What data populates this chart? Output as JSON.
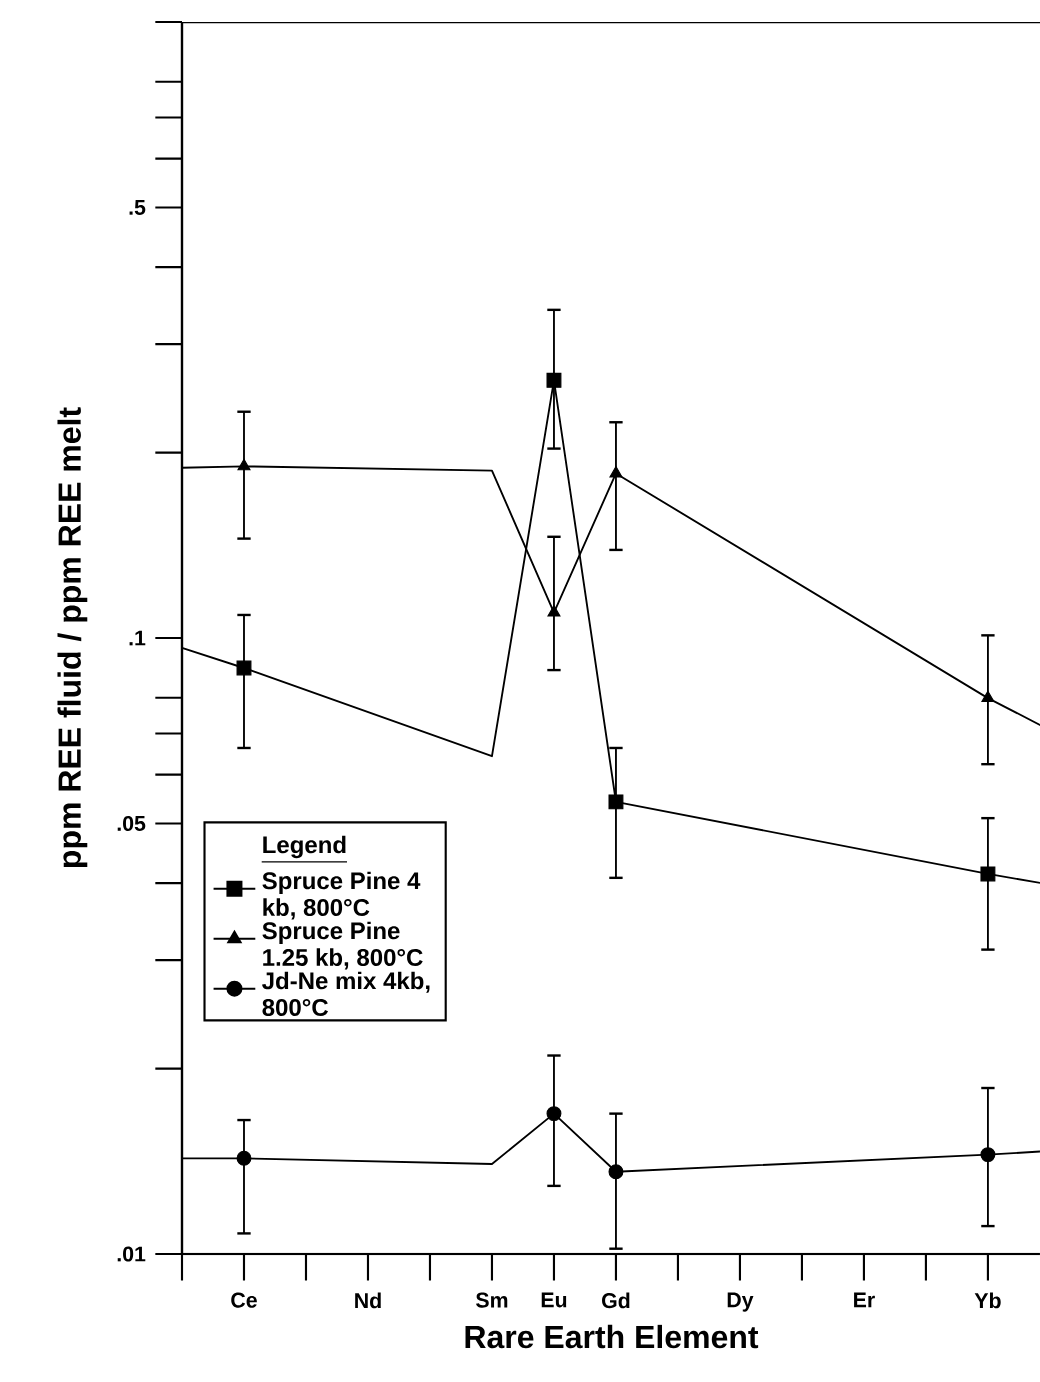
{
  "chart_data": {
    "type": "scatter",
    "xlabel": "Rare Earth Element",
    "ylabel": "ppm REE fluid / ppm REE melt",
    "legend_title": "Legend",
    "categories": [
      null,
      "Ce",
      null,
      "Nd",
      null,
      "Sm",
      "Eu",
      "Gd",
      null,
      "Dy",
      null,
      "Er",
      null,
      "Yb",
      null
    ],
    "log": "y",
    "ylim": [
      0.01,
      1
    ],
    "yticks": [
      {
        "value": 0.01,
        "label": ".01"
      },
      {
        "value": 0.02,
        "label": null
      },
      {
        "value": 0.03,
        "label": null
      },
      {
        "value": 0.04,
        "label": null
      },
      {
        "value": 0.05,
        "label": ".05"
      },
      {
        "value": 0.06,
        "label": null
      },
      {
        "value": 0.07,
        "label": null
      },
      {
        "value": 0.08,
        "label": null
      },
      {
        "value": 0.1,
        "label": ".1"
      },
      {
        "value": 0.2,
        "label": null
      },
      {
        "value": 0.3,
        "label": null
      },
      {
        "value": 0.4,
        "label": null
      },
      {
        "value": 0.5,
        "label": ".5"
      },
      {
        "value": 0.6,
        "label": null
      },
      {
        "value": 0.7,
        "label": null
      },
      {
        "value": 0.8,
        "label": null
      },
      {
        "value": 1,
        "label": null
      }
    ],
    "legend": "left",
    "grid": false,
    "series": [
      {
        "type": "line",
        "color": "#000000",
        "marker": "none",
        "values": [
          0.0964,
          0.0894,
          null,
          null,
          null,
          0.0643,
          0.262,
          0.0542,
          null,
          null,
          null,
          null,
          null,
          0.0414,
          0.0398
        ]
      },
      {
        "type": "line",
        "color": "#000000",
        "marker": "none",
        "values": [
          0.189,
          0.19,
          null,
          null,
          null,
          0.187,
          0.11,
          0.185,
          null,
          null,
          null,
          null,
          null,
          0.0799,
          0.0709
        ]
      },
      {
        "type": "line",
        "color": "#000000",
        "marker": "none",
        "values": [
          0.0143,
          0.0143,
          null,
          null,
          null,
          0.014,
          0.0169,
          0.0136,
          null,
          null,
          null,
          null,
          null,
          0.0145,
          0.0147
        ]
      },
      {
        "name": "Spruce Pine 4 kb, 800°C",
        "type": "scatter",
        "color": "#000000",
        "marker": "square",
        "values": [
          null,
          0.0894,
          null,
          null,
          null,
          null,
          0.262,
          0.0542,
          null,
          null,
          null,
          null,
          null,
          0.0414,
          null
        ],
        "errors": [
          null,
          [
            0.0663,
            0.109
          ],
          null,
          null,
          null,
          null,
          [
            0.203,
            0.341
          ],
          [
            0.0408,
            0.0663
          ],
          null,
          null,
          null,
          null,
          null,
          [
            0.0312,
            0.051
          ],
          null
        ]
      },
      {
        "name": "Spruce Pine 1.25 kb, 800°C",
        "type": "scatter",
        "color": "#000000",
        "marker": "triangle",
        "values": [
          null,
          0.19,
          null,
          null,
          null,
          null,
          0.11,
          0.185,
          null,
          null,
          null,
          null,
          null,
          0.0799,
          null
        ],
        "errors": [
          null,
          [
            0.145,
            0.233
          ],
          null,
          null,
          null,
          null,
          [
            0.0887,
            0.146
          ],
          [
            0.139,
            0.224
          ],
          null,
          null,
          null,
          null,
          null,
          [
            0.0624,
            0.101
          ],
          null
        ]
      },
      {
        "name": "Jd-Ne mix 4kb, 800°C",
        "type": "scatter",
        "color": "#000000",
        "marker": "circle",
        "values": [
          null,
          0.0143,
          null,
          null,
          null,
          null,
          0.0169,
          0.0136,
          null,
          null,
          null,
          null,
          null,
          0.0145,
          null
        ],
        "errors": [
          null,
          [
            0.0108,
            0.0165
          ],
          null,
          null,
          null,
          null,
          [
            0.0129,
            0.021
          ],
          [
            0.0102,
            0.0169
          ],
          null,
          null,
          null,
          null,
          null,
          [
            0.0111,
            0.0186
          ],
          null
        ]
      }
    ]
  }
}
